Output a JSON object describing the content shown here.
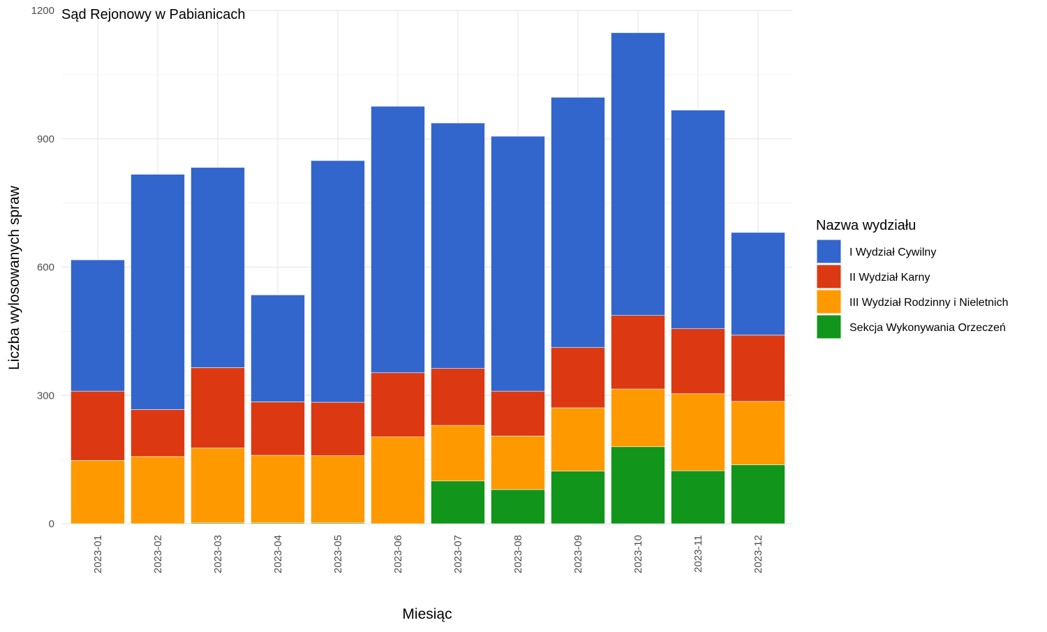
{
  "chart_data": {
    "type": "bar",
    "stacked": true,
    "title": "Sąd Rejonowy w Pabianicach",
    "xlabel": "Miesiąc",
    "ylabel": "Liczba wylosowanych spraw",
    "ylim": [
      0,
      1200
    ],
    "yticks": [
      "0",
      "300",
      "600",
      "900",
      "1200"
    ],
    "grid": true,
    "legend": {
      "title": "Nazwa wydziału",
      "position": "right"
    },
    "categories": [
      "2023-01",
      "2023-02",
      "2023-03",
      "2023-04",
      "2023-05",
      "2023-06",
      "2023-07",
      "2023-08",
      "2023-09",
      "2023-10",
      "2023-11",
      "2023-12"
    ],
    "series": [
      {
        "name": "Sekcja Wykonywania Orzeczeń",
        "color": "#11961b",
        "values": [
          0,
          0,
          2,
          2,
          2,
          0,
          100,
          80,
          123,
          180,
          124,
          138
        ]
      },
      {
        "name": "III Wydział Rodzinny i Nieletnich",
        "color": "#ff9900",
        "values": [
          148,
          157,
          175,
          158,
          157,
          203,
          130,
          125,
          148,
          135,
          180,
          148
        ]
      },
      {
        "name": "II Wydział Karny",
        "color": "#dc3912",
        "values": [
          162,
          110,
          188,
          125,
          125,
          150,
          133,
          105,
          141,
          172,
          152,
          155
        ]
      },
      {
        "name": "I Wydział Cywilny",
        "color": "#3366cc",
        "values": [
          307,
          550,
          468,
          250,
          565,
          623,
          574,
          596,
          585,
          661,
          511,
          240
        ]
      }
    ],
    "legend_order": [
      "I Wydział Cywilny",
      "II Wydział Karny",
      "III Wydział Rodzinny i Nieletnich",
      "Sekcja Wykonywania Orzeczeń"
    ]
  }
}
